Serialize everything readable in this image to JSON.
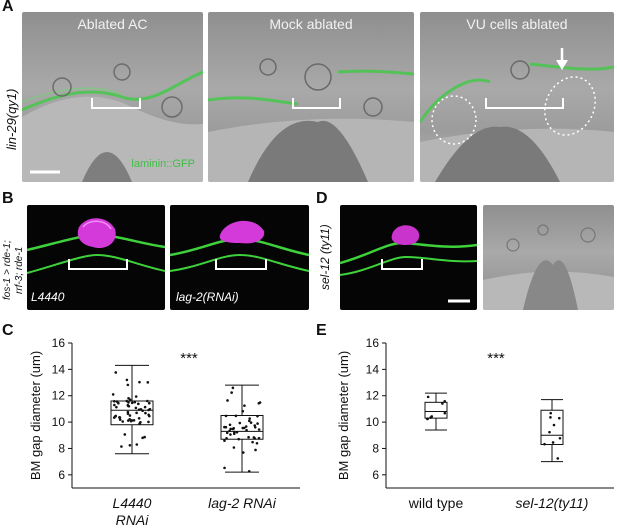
{
  "letters": {
    "A": "A",
    "B": "B",
    "C": "C",
    "D": "D",
    "E": "E"
  },
  "panel_a": {
    "row_label": "lin-29(qy1)",
    "titles": [
      "Ablated AC",
      "Mock ablated",
      "VU cells ablated"
    ],
    "overlay": "laminin::GFP"
  },
  "panel_b": {
    "row_label_1": "fos-1 > rde-1;",
    "row_label_2": "rrf-3; rde-1",
    "image_labels": [
      "L4440",
      "lag-2(RNAi)"
    ]
  },
  "panel_d": {
    "row_label": "sel-12 (ty11)"
  },
  "chart_data": [
    {
      "type": "box",
      "panel": "C",
      "ylabel": "BM gap diameter (um)",
      "ylim": [
        5,
        16
      ],
      "yticks": [
        6,
        8,
        10,
        12,
        14,
        16
      ],
      "categories": [
        "L4440 RNAi",
        "lag-2 RNAi"
      ],
      "category_lines": [
        [
          "L4440",
          "RNAi"
        ],
        [
          "lag-2 RNAi"
        ]
      ],
      "annotation": "***",
      "boxes": [
        {
          "whisker_low": 7.6,
          "q1": 9.8,
          "median": 10.9,
          "q3": 11.6,
          "whisker_high": 14.3
        },
        {
          "whisker_low": 6.2,
          "q1": 8.7,
          "median": 9.3,
          "q3": 10.5,
          "whisker_high": 12.8
        }
      ]
    },
    {
      "type": "box",
      "panel": "E",
      "ylabel": "BM gap diameter (um)",
      "ylim": [
        5,
        16
      ],
      "yticks": [
        6,
        8,
        10,
        12,
        14,
        16
      ],
      "categories": [
        "wild type",
        "sel-12(ty11)"
      ],
      "category_lines": [
        [
          "wild type"
        ],
        [
          "sel-12(ty11)"
        ]
      ],
      "annotation": "***",
      "boxes": [
        {
          "whisker_low": 9.4,
          "q1": 10.3,
          "median": 10.8,
          "q3": 11.5,
          "whisker_high": 12.2
        },
        {
          "whisker_low": 7.0,
          "q1": 8.3,
          "median": 9.0,
          "q3": 10.9,
          "whisker_high": 11.7
        }
      ]
    }
  ]
}
